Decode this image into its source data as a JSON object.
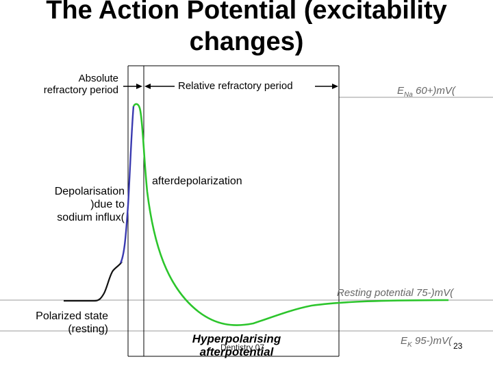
{
  "title_line1": "The Action Potential (excitability",
  "title_line2": "changes)",
  "labels": {
    "absolute_line1": "Absolute",
    "absolute_line2": "refractory period",
    "relative": "Relative refractory period",
    "ena_main": "E",
    "ena_sub": "Na",
    "ena_value": " 60+)mV(",
    "depol_line1": "Depolarisation",
    "depol_line2": ")due to",
    "depol_line3": "sodium influx(",
    "afterdepol": "afterdepolarization",
    "resting_potential": "Resting potential  75-)mV(",
    "polarized_line1": "Polarized state",
    "polarized_line2": "(resting)",
    "hyper_line1": "Hyperpolarising",
    "hyper_line2": "afterpotential",
    "ek_main": "E",
    "ek_sub": "K",
    "ek_value": " 95-)mV(",
    "footer": "Dentistry 07",
    "slide_number": "23"
  },
  "colors": {
    "depolarization_trace": "#3a3ab0",
    "repolarization_trace": "#2cc52c",
    "baseline_trace": "#111111",
    "reference_lines": "#9a9a9a"
  }
}
